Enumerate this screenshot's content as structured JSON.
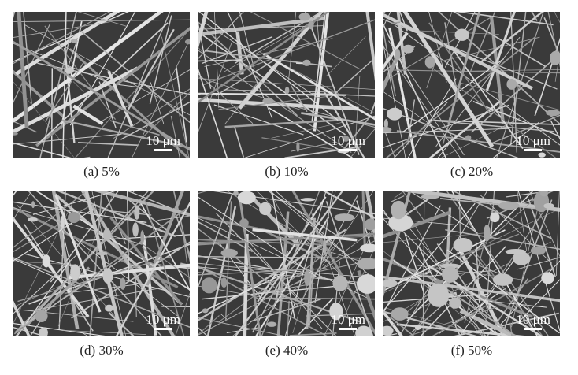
{
  "panels": [
    {
      "caption": "(a) 5%",
      "scale_label": "10 μm"
    },
    {
      "caption": "(b) 10%",
      "scale_label": "10 μm"
    },
    {
      "caption": "(c) 20%",
      "scale_label": "10 μm"
    },
    {
      "caption": "(d) 30%",
      "scale_label": "10 μm"
    },
    {
      "caption": "(e) 40%",
      "scale_label": "10 μm"
    },
    {
      "caption": "(f) 50%",
      "scale_label": "10 μm"
    }
  ]
}
